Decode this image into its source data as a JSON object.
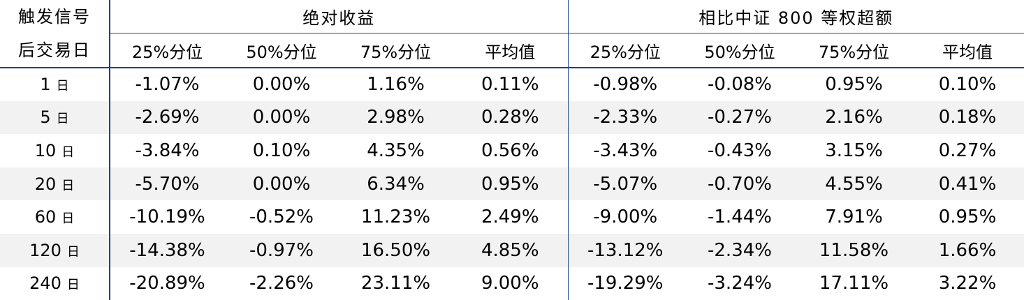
{
  "header": {
    "corner_line1": "触发信号",
    "corner_line2": "后交易日",
    "group_absolute": "绝对收益",
    "group_excess": "相比中证 800 等权超额",
    "columns": [
      "25%分位",
      "50%分位",
      "75%分位",
      "平均值",
      "25%分位",
      "50%分位",
      "75%分位",
      "平均值"
    ]
  },
  "rows": [
    {
      "day": "1",
      "unit": "日",
      "values": [
        "-1.07%",
        "0.00%",
        "1.16%",
        "0.11%",
        "-0.98%",
        "-0.08%",
        "0.95%",
        "0.10%"
      ]
    },
    {
      "day": "5",
      "unit": "日",
      "values": [
        "-2.69%",
        "0.00%",
        "2.98%",
        "0.28%",
        "-2.33%",
        "-0.27%",
        "2.16%",
        "0.18%"
      ]
    },
    {
      "day": "10",
      "unit": "日",
      "values": [
        "-3.84%",
        "0.10%",
        "4.35%",
        "0.56%",
        "-3.43%",
        "-0.43%",
        "3.15%",
        "0.27%"
      ]
    },
    {
      "day": "20",
      "unit": "日",
      "values": [
        "-5.70%",
        "0.00%",
        "6.34%",
        "0.95%",
        "-5.07%",
        "-0.70%",
        "4.55%",
        "0.41%"
      ]
    },
    {
      "day": "60",
      "unit": "日",
      "values": [
        "-10.19%",
        "-0.52%",
        "11.23%",
        "2.49%",
        "-9.00%",
        "-1.44%",
        "7.91%",
        "0.95%"
      ]
    },
    {
      "day": "120",
      "unit": "日",
      "values": [
        "-14.38%",
        "-0.97%",
        "16.50%",
        "4.85%",
        "-13.12%",
        "-2.34%",
        "11.58%",
        "1.66%"
      ]
    },
    {
      "day": "240",
      "unit": "日",
      "values": [
        "-20.89%",
        "-2.26%",
        "23.11%",
        "9.00%",
        "-19.29%",
        "-3.24%",
        "17.11%",
        "3.22%"
      ]
    }
  ],
  "colors": {
    "rule": "#1f3f8f",
    "stripe": "#f2f2f2"
  }
}
